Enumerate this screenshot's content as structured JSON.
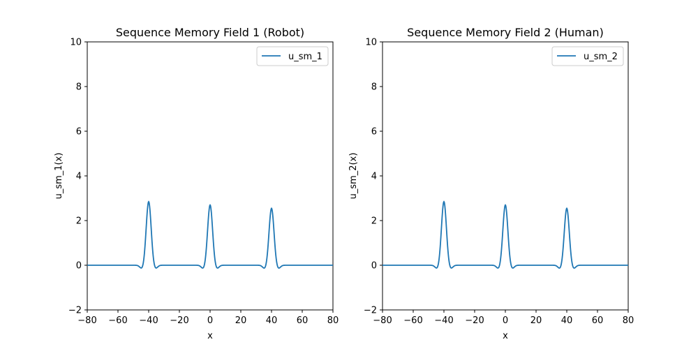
{
  "chart_data": [
    {
      "type": "line",
      "title": "Sequence Memory Field 1 (Robot)",
      "xlabel": "x",
      "ylabel": "u_sm_1(x)",
      "xlim": [
        -80,
        80
      ],
      "ylim": [
        -2,
        10
      ],
      "xticks": [
        "−80",
        "−60",
        "−40",
        "−20",
        "0",
        "20",
        "40",
        "60",
        "80"
      ],
      "yticks": [
        "−2",
        "0",
        "2",
        "4",
        "6",
        "8",
        "10"
      ],
      "grid": false,
      "legend_position": "top-right",
      "color": "#1f77b4",
      "series": [
        {
          "name": "u_sm_1",
          "peaks": [
            {
              "center": -40,
              "height": 2.85
            },
            {
              "center": 0,
              "height": 2.7
            },
            {
              "center": 40,
              "height": 2.55
            }
          ],
          "dip": -0.17
        }
      ]
    },
    {
      "type": "line",
      "title": "Sequence Memory Field 2 (Human)",
      "xlabel": "x",
      "ylabel": "u_sm_2(x)",
      "xlim": [
        -80,
        80
      ],
      "ylim": [
        -2,
        10
      ],
      "xticks": [
        "−80",
        "−60",
        "−40",
        "−20",
        "0",
        "20",
        "40",
        "60",
        "80"
      ],
      "yticks": [
        "−2",
        "0",
        "2",
        "4",
        "6",
        "8",
        "10"
      ],
      "grid": false,
      "legend_position": "top-right",
      "color": "#1f77b4",
      "series": [
        {
          "name": "u_sm_2",
          "peaks": [
            {
              "center": -40,
              "height": 2.85
            },
            {
              "center": 0,
              "height": 2.7
            },
            {
              "center": 40,
              "height": 2.55
            }
          ],
          "dip": -0.17
        }
      ]
    }
  ]
}
